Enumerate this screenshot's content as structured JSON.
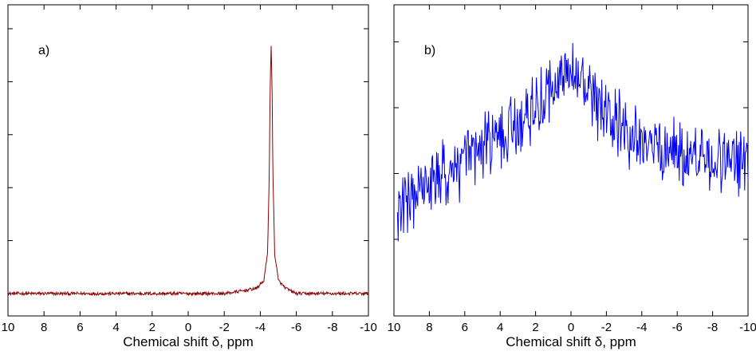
{
  "chart_data": [
    {
      "type": "line",
      "panel_label": "a)",
      "xlabel": "Chemical shift δ, ppm",
      "ylabel": "",
      "x_reversed": true,
      "xlim": [
        10,
        -10
      ],
      "ylim": [
        0,
        1
      ],
      "xticks": [
        10,
        8,
        6,
        4,
        2,
        0,
        -2,
        -4,
        -6,
        -8,
        -10
      ],
      "xtick_labels": [
        "10",
        "8",
        "6",
        "4",
        "2",
        "0",
        "-2",
        "-4",
        "-6",
        "-8",
        "-10"
      ],
      "yticks": [
        0,
        0.2,
        0.4,
        0.6,
        0.8,
        1.0
      ],
      "grid": false,
      "color": "#8b0000",
      "series": [
        {
          "x": [
            10,
            9,
            8,
            7,
            6,
            5,
            4,
            3,
            2,
            1,
            0,
            -1,
            -2,
            -3,
            -3.8,
            -4.2,
            -4.4,
            -4.5,
            -4.55,
            -4.6,
            -4.65,
            -4.7,
            -4.8,
            -5.0,
            -5.4,
            -6,
            -7,
            -8,
            -9,
            -10
          ],
          "values": [
            0.0,
            0.0,
            0.0,
            0.0,
            0.0,
            0.0,
            0.0,
            0.0,
            0.0,
            0.0,
            0.0,
            0.0,
            0.0,
            0.01,
            0.02,
            0.05,
            0.15,
            0.45,
            0.8,
            0.93,
            0.8,
            0.45,
            0.15,
            0.05,
            0.02,
            0.0,
            0.0,
            0.0,
            0.0,
            0.0
          ]
        }
      ]
    },
    {
      "type": "line",
      "panel_label": "b)",
      "xlabel": "Chemical shift δ, ppm",
      "ylabel": "",
      "x_reversed": true,
      "xlim": [
        10,
        -10
      ],
      "ylim": [
        0,
        1
      ],
      "xticks": [
        10,
        8,
        6,
        4,
        2,
        0,
        -2,
        -4,
        -6,
        -8,
        -10
      ],
      "xtick_labels": [
        "10",
        "8",
        "6",
        "4",
        "2",
        "0",
        "-2",
        "-4",
        "-6",
        "-8",
        "-10"
      ],
      "yticks": [
        0.2,
        0.45,
        0.7,
        0.95
      ],
      "grid": false,
      "color": "#0000ff",
      "series": [
        {
          "x": [
            9.8,
            9.0,
            8.0,
            7.0,
            6.0,
            5.0,
            4.0,
            3.0,
            2.0,
            1.0,
            0.5,
            0.0,
            -0.5,
            -1.0,
            -2.0,
            -3.0,
            -4.0,
            -5.0,
            -6.0,
            -7.0,
            -8.0,
            -9.0,
            -10.0
          ],
          "values": [
            0.3,
            0.36,
            0.4,
            0.45,
            0.5,
            0.54,
            0.59,
            0.64,
            0.71,
            0.78,
            0.82,
            0.84,
            0.8,
            0.74,
            0.66,
            0.61,
            0.57,
            0.55,
            0.53,
            0.52,
            0.5,
            0.49,
            0.5
          ]
        }
      ]
    }
  ]
}
